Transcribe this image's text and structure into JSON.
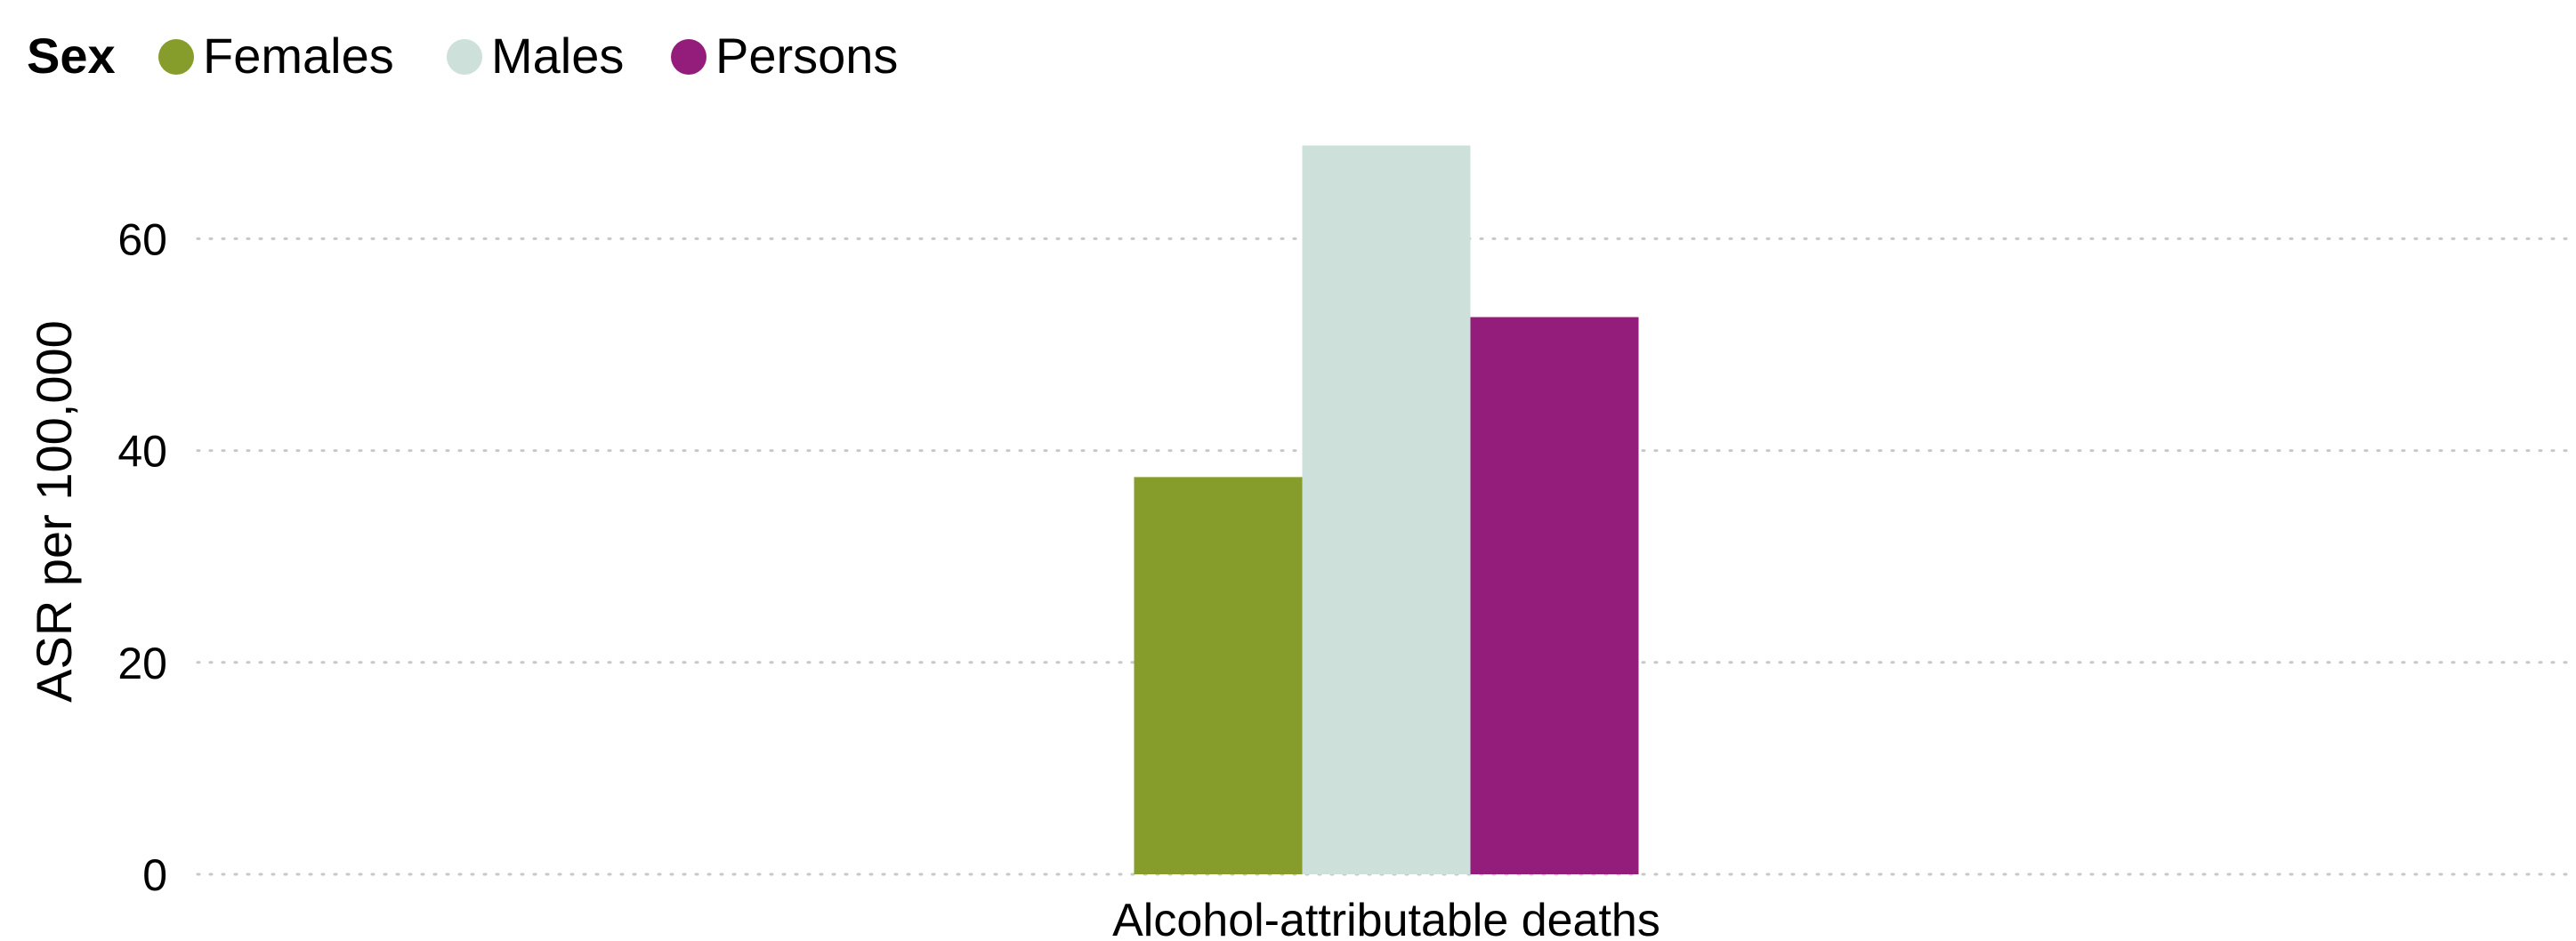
{
  "legend": {
    "title": "Sex",
    "items": [
      {
        "label": "Females",
        "color": "#869d2b"
      },
      {
        "label": "Males",
        "color": "#cde0da"
      },
      {
        "label": "Persons",
        "color": "#941d7c"
      }
    ]
  },
  "chart_data": {
    "type": "bar",
    "categories": [
      "Alcohol-attributable deaths"
    ],
    "series": [
      {
        "name": "Females",
        "values": [
          37.5
        ],
        "color": "#869d2b"
      },
      {
        "name": "Males",
        "values": [
          68.8
        ],
        "color": "#cde0da"
      },
      {
        "name": "Persons",
        "values": [
          52.6
        ],
        "color": "#941d7c"
      }
    ],
    "ylabel": "ASR per 100,000",
    "xlabel": "",
    "ylim": [
      0,
      69
    ],
    "yticks": [
      0,
      20,
      40,
      60
    ],
    "grid": true,
    "legend_position": "top-left"
  }
}
